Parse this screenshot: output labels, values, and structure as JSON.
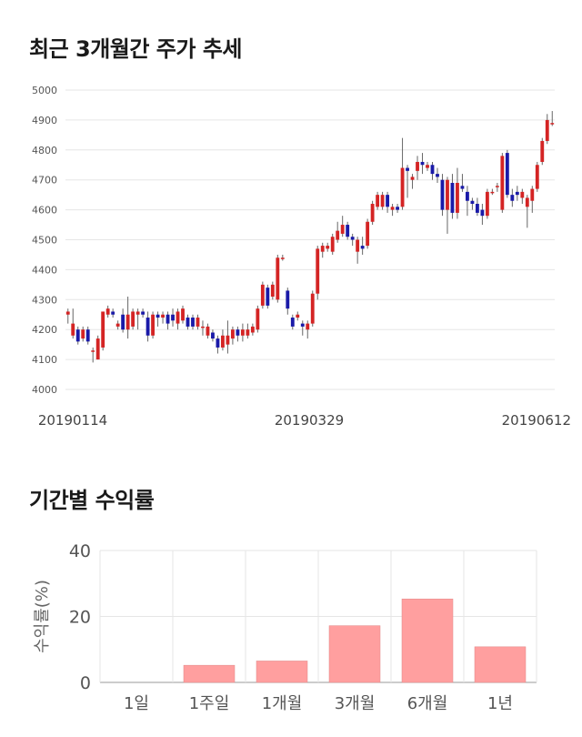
{
  "price_section": {
    "title": "최근 3개월간 주가 추세"
  },
  "returns_section": {
    "title": "기간별 수익률"
  },
  "colors": {
    "up": "#d42424",
    "down": "#1a1aa8",
    "bar": "#ff9f9f",
    "grid": "#e6e6e6"
  },
  "chart_data": [
    {
      "type": "candlestick",
      "title": "",
      "xlabel": "",
      "ylabel": "",
      "ylim": [
        4000,
        5000
      ],
      "yticks": [
        4000,
        4100,
        4200,
        4300,
        4400,
        4500,
        4600,
        4700,
        4800,
        4900,
        5000
      ],
      "xtick_labels": [
        "20190114",
        "20190329",
        "20190612"
      ],
      "grid": true,
      "candles": [
        [
          4250,
          4260,
          4220,
          4270
        ],
        [
          4180,
          4220,
          4170,
          4270
        ],
        [
          4200,
          4160,
          4150,
          4210
        ],
        [
          4170,
          4200,
          4160,
          4210
        ],
        [
          4200,
          4160,
          4150,
          4210
        ],
        [
          4130,
          4130,
          4090,
          4140
        ],
        [
          4100,
          4170,
          4100,
          4180
        ],
        [
          4140,
          4260,
          4130,
          4260
        ],
        [
          4250,
          4270,
          4240,
          4280
        ],
        [
          4260,
          4250,
          4240,
          4270
        ],
        [
          4210,
          4220,
          4200,
          4230
        ],
        [
          4250,
          4200,
          4190,
          4270
        ],
        [
          4200,
          4250,
          4170,
          4310
        ],
        [
          4210,
          4260,
          4200,
          4270
        ],
        [
          4250,
          4260,
          4200,
          4270
        ],
        [
          4260,
          4250,
          4240,
          4270
        ],
        [
          4240,
          4180,
          4160,
          4260
        ],
        [
          4180,
          4250,
          4170,
          4260
        ],
        [
          4250,
          4240,
          4210,
          4260
        ],
        [
          4240,
          4250,
          4220,
          4260
        ],
        [
          4250,
          4220,
          4200,
          4260
        ],
        [
          4250,
          4230,
          4210,
          4270
        ],
        [
          4220,
          4260,
          4200,
          4270
        ],
        [
          4230,
          4270,
          4220,
          4280
        ],
        [
          4240,
          4210,
          4200,
          4250
        ],
        [
          4240,
          4210,
          4200,
          4250
        ],
        [
          4210,
          4240,
          4200,
          4250
        ],
        [
          4210,
          4210,
          4180,
          4230
        ],
        [
          4180,
          4210,
          4170,
          4220
        ],
        [
          4190,
          4170,
          4160,
          4200
        ],
        [
          4170,
          4140,
          4120,
          4180
        ],
        [
          4140,
          4180,
          4130,
          4200
        ],
        [
          4150,
          4180,
          4120,
          4230
        ],
        [
          4170,
          4200,
          4150,
          4210
        ],
        [
          4200,
          4180,
          4160,
          4210
        ],
        [
          4180,
          4200,
          4160,
          4220
        ],
        [
          4180,
          4200,
          4170,
          4220
        ],
        [
          4190,
          4210,
          4180,
          4220
        ],
        [
          4200,
          4270,
          4190,
          4280
        ],
        [
          4280,
          4350,
          4270,
          4360
        ],
        [
          4340,
          4280,
          4270,
          4350
        ],
        [
          4310,
          4350,
          4300,
          4360
        ],
        [
          4300,
          4440,
          4290,
          4450
        ],
        [
          4440,
          4440,
          4430,
          4450
        ],
        [
          4330,
          4270,
          4250,
          4340
        ],
        [
          4240,
          4210,
          4200,
          4250
        ],
        [
          4240,
          4250,
          4230,
          4260
        ],
        [
          4220,
          4210,
          4180,
          4230
        ],
        [
          4200,
          4220,
          4170,
          4230
        ],
        [
          4220,
          4320,
          4210,
          4330
        ],
        [
          4320,
          4470,
          4300,
          4480
        ],
        [
          4460,
          4480,
          4440,
          4490
        ],
        [
          4470,
          4480,
          4460,
          4490
        ],
        [
          4460,
          4510,
          4450,
          4520
        ],
        [
          4500,
          4530,
          4490,
          4560
        ],
        [
          4520,
          4550,
          4510,
          4580
        ],
        [
          4550,
          4510,
          4500,
          4560
        ],
        [
          4510,
          4500,
          4480,
          4520
        ],
        [
          4460,
          4500,
          4420,
          4510
        ],
        [
          4480,
          4470,
          4450,
          4510
        ],
        [
          4480,
          4560,
          4470,
          4570
        ],
        [
          4560,
          4620,
          4550,
          4630
        ],
        [
          4610,
          4650,
          4600,
          4660
        ],
        [
          4610,
          4650,
          4600,
          4660
        ],
        [
          4650,
          4610,
          4590,
          4660
        ],
        [
          4600,
          4610,
          4580,
          4620
        ],
        [
          4610,
          4600,
          4590,
          4620
        ],
        [
          4610,
          4740,
          4600,
          4840
        ],
        [
          4740,
          4730,
          4640,
          4750
        ],
        [
          4700,
          4710,
          4670,
          4720
        ],
        [
          4730,
          4760,
          4700,
          4780
        ],
        [
          4760,
          4750,
          4720,
          4790
        ],
        [
          4740,
          4750,
          4730,
          4760
        ],
        [
          4750,
          4720,
          4700,
          4760
        ],
        [
          4720,
          4710,
          4690,
          4740
        ],
        [
          4700,
          4600,
          4580,
          4720
        ],
        [
          4600,
          4700,
          4520,
          4710
        ],
        [
          4690,
          4590,
          4570,
          4720
        ],
        [
          4590,
          4690,
          4570,
          4740
        ],
        [
          4680,
          4670,
          4660,
          4720
        ],
        [
          4660,
          4630,
          4580,
          4680
        ],
        [
          4630,
          4620,
          4600,
          4640
        ],
        [
          4620,
          4590,
          4580,
          4640
        ],
        [
          4600,
          4580,
          4550,
          4620
        ],
        [
          4580,
          4660,
          4570,
          4670
        ],
        [
          4660,
          4660,
          4650,
          4670
        ],
        [
          4680,
          4680,
          4660,
          4690
        ],
        [
          4600,
          4780,
          4590,
          4790
        ],
        [
          4790,
          4650,
          4640,
          4800
        ],
        [
          4650,
          4630,
          4610,
          4670
        ],
        [
          4660,
          4650,
          4630,
          4680
        ],
        [
          4640,
          4660,
          4620,
          4670
        ],
        [
          4610,
          4640,
          4540,
          4650
        ],
        [
          4630,
          4670,
          4590,
          4680
        ],
        [
          4670,
          4750,
          4660,
          4760
        ],
        [
          4760,
          4830,
          4750,
          4840
        ],
        [
          4830,
          4900,
          4820,
          4920
        ],
        [
          4890,
          4890,
          4880,
          4930
        ]
      ]
    },
    {
      "type": "bar",
      "title": "",
      "xlabel": "",
      "ylabel": "수익률(%)",
      "ylim": [
        0,
        40
      ],
      "yticks": [
        0,
        20,
        40
      ],
      "categories": [
        "1일",
        "1주일",
        "1개월",
        "3개월",
        "6개월",
        "1년"
      ],
      "values": [
        0,
        5.2,
        6.5,
        17.2,
        25.3,
        10.8
      ],
      "grid": true
    }
  ]
}
